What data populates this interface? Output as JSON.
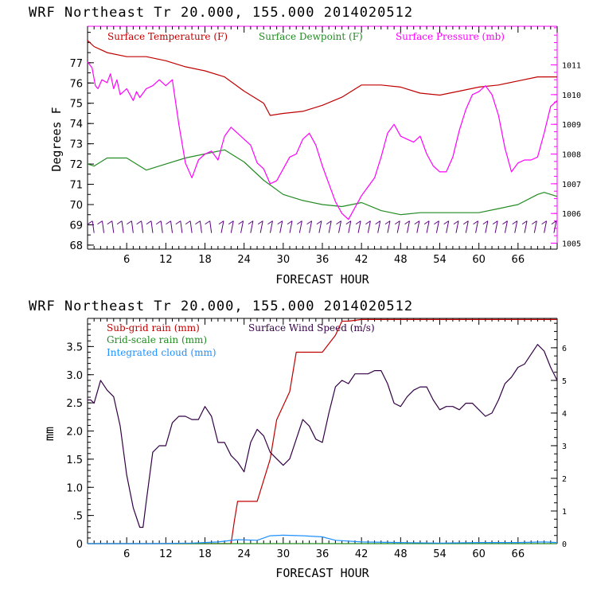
{
  "colors": {
    "temperature": "#c00000",
    "dewpoint": "#228b22",
    "pressure": "#ff00ff",
    "subgrid_rain": "#c00000",
    "gridscale_rain": "#228b22",
    "cloud": "#1e90ff",
    "wind_speed": "#330044",
    "barb": "#5a0080",
    "axis": "#000000"
  },
  "chart_data": [
    {
      "type": "line",
      "title": "WRF   Northeast Tr  20.000, 155.000  2014020512",
      "xlabel": "FORECAST HOUR",
      "ylabel": "Degrees F",
      "xlim": [
        0,
        72
      ],
      "ylim": [
        67.8,
        78.8
      ],
      "y2lim": [
        1004.8,
        1012.3
      ],
      "x_ticks": [
        "6",
        "12",
        "18",
        "24",
        "30",
        "36",
        "42",
        "48",
        "54",
        "60",
        "66"
      ],
      "y_ticks": [
        "68",
        "69",
        "70",
        "71",
        "72",
        "73",
        "74",
        "75",
        "76",
        "77"
      ],
      "y2_ticks": [
        "1005",
        "1006",
        "1007",
        "1008",
        "1009",
        "1010",
        "1011"
      ],
      "legend_position": "top",
      "wind_barbs": "wind barbs along the bottom at 69 F level, every forecast hour",
      "series": [
        {
          "name": "Surface Temperature (F)",
          "axis": "left",
          "x": [
            0,
            1,
            3,
            6,
            9,
            12,
            15,
            18,
            21,
            24,
            27,
            28,
            30,
            33,
            36,
            39,
            42,
            45,
            48,
            51,
            54,
            57,
            60,
            63,
            66,
            69,
            72
          ],
          "values": [
            78.1,
            77.8,
            77.5,
            77.3,
            77.3,
            77.1,
            76.8,
            76.6,
            76.3,
            75.6,
            75.0,
            74.4,
            74.5,
            74.6,
            74.9,
            75.3,
            75.9,
            75.9,
            75.8,
            75.5,
            75.4,
            75.6,
            75.8,
            75.9,
            76.1,
            76.3,
            76.3
          ]
        },
        {
          "name": "Surface Dewpoint (F)",
          "axis": "left",
          "x": [
            0,
            1,
            3,
            6,
            9,
            12,
            15,
            18,
            21,
            24,
            27,
            30,
            33,
            36,
            39,
            42,
            45,
            48,
            51,
            54,
            57,
            60,
            63,
            66,
            69,
            70,
            72
          ],
          "values": [
            72.0,
            71.9,
            72.3,
            72.3,
            71.7,
            72.0,
            72.3,
            72.5,
            72.7,
            72.1,
            71.2,
            70.5,
            70.2,
            70.0,
            69.9,
            70.1,
            69.7,
            69.5,
            69.6,
            69.6,
            69.6,
            69.6,
            69.8,
            70.0,
            70.5,
            70.6,
            70.4
          ]
        },
        {
          "name": "Surface Pressure (mb)",
          "axis": "right",
          "x": [
            0,
            0.7,
            1.2,
            1.6,
            2.2,
            3,
            3.5,
            4,
            4.5,
            5,
            6,
            7,
            7.5,
            8,
            9,
            10,
            11,
            12,
            13,
            14,
            15,
            16,
            17,
            18,
            19,
            20,
            21,
            22,
            23,
            24,
            25,
            26,
            27,
            28,
            29,
            30,
            31,
            32,
            33,
            34,
            35,
            36,
            37,
            38,
            39,
            40,
            41,
            42,
            43,
            44,
            45,
            46,
            47,
            48,
            49,
            50,
            51,
            52,
            53,
            54,
            55,
            56,
            57,
            58,
            59,
            60,
            61,
            62,
            63,
            64,
            65,
            66,
            67,
            68,
            69,
            70,
            71,
            72
          ],
          "values": [
            1011.1,
            1010.9,
            1010.3,
            1010.2,
            1010.5,
            1010.4,
            1010.7,
            1010.2,
            1010.5,
            1010.0,
            1010.2,
            1009.8,
            1010.1,
            1009.9,
            1010.2,
            1010.3,
            1010.5,
            1010.3,
            1010.5,
            1009.0,
            1007.7,
            1007.2,
            1007.8,
            1008.0,
            1008.1,
            1007.8,
            1008.6,
            1008.9,
            1008.7,
            1008.5,
            1008.3,
            1007.7,
            1007.5,
            1007.0,
            1007.1,
            1007.5,
            1007.9,
            1008.0,
            1008.5,
            1008.7,
            1008.3,
            1007.6,
            1007.0,
            1006.4,
            1006.0,
            1005.8,
            1006.2,
            1006.6,
            1006.9,
            1007.2,
            1007.9,
            1008.7,
            1009.0,
            1008.6,
            1008.5,
            1008.4,
            1008.6,
            1008.0,
            1007.6,
            1007.4,
            1007.4,
            1007.9,
            1008.8,
            1009.5,
            1010.0,
            1010.1,
            1010.3,
            1010.0,
            1009.3,
            1008.2,
            1007.4,
            1007.7,
            1007.8,
            1007.8,
            1007.9,
            1008.7,
            1009.6,
            1009.8
          ]
        }
      ]
    },
    {
      "type": "line",
      "title": "WRF   Northeast Tr  20.000, 155.000  2014020512",
      "xlabel": "FORECAST HOUR",
      "ylabel": "mm",
      "xlim": [
        0,
        72
      ],
      "ylim": [
        0,
        4.0
      ],
      "y2lim": [
        0,
        6.9
      ],
      "x_ticks": [
        "6",
        "12",
        "18",
        "24",
        "30",
        "36",
        "42",
        "48",
        "54",
        "60",
        "66"
      ],
      "y_ticks": [
        "0",
        ".5",
        "1.0",
        "1.5",
        "2.0",
        "2.5",
        "3.0",
        "3.5"
      ],
      "y2_ticks": [
        "0",
        "1",
        "2",
        "3",
        "4",
        "5",
        "6"
      ],
      "legend_position": "top-left",
      "series": [
        {
          "name": "Sub-grid rain (mm)",
          "axis": "left",
          "x": [
            0,
            22,
            22.5,
            23,
            26,
            28,
            29,
            31,
            32,
            36,
            38,
            39,
            40,
            42,
            72
          ],
          "values": [
            0,
            0,
            0.4,
            0.75,
            0.75,
            1.5,
            2.2,
            2.7,
            3.4,
            3.4,
            3.7,
            3.95,
            3.95,
            3.98,
            3.98
          ]
        },
        {
          "name": "Grid-scale rain (mm)",
          "axis": "left",
          "x": [
            0,
            72
          ],
          "values": [
            0,
            0
          ]
        },
        {
          "name": "Integrated cloud (mm)",
          "axis": "left",
          "x": [
            0,
            10,
            16,
            20,
            23,
            26,
            28,
            30,
            33,
            36,
            38,
            42,
            48,
            54,
            60,
            66,
            70,
            72
          ],
          "values": [
            0,
            0,
            0.01,
            0.03,
            0.07,
            0.06,
            0.14,
            0.15,
            0.14,
            0.12,
            0.06,
            0.03,
            0.02,
            0.01,
            0.02,
            0.02,
            0.03,
            0.02
          ]
        },
        {
          "name": "Surface Wind Speed (m/s)",
          "axis": "right",
          "x": [
            0,
            0.5,
            1,
            2,
            3,
            4,
            5,
            6,
            7,
            8,
            8.5,
            9,
            10,
            11,
            12,
            13,
            14,
            15,
            16,
            17,
            18,
            19,
            20,
            21,
            22,
            23,
            24,
            25,
            26,
            27,
            28,
            29,
            30,
            31,
            32,
            33,
            34,
            35,
            36,
            37,
            38,
            39,
            40,
            41,
            42,
            43,
            44,
            45,
            46,
            47,
            48,
            49,
            50,
            51,
            52,
            53,
            54,
            55,
            56,
            57,
            58,
            59,
            60,
            61,
            62,
            63,
            64,
            65,
            66,
            67,
            68,
            69,
            70,
            71,
            72
          ],
          "values": [
            4.4,
            4.4,
            4.3,
            5.0,
            4.7,
            4.5,
            3.6,
            2.1,
            1.1,
            0.5,
            0.5,
            1.3,
            2.8,
            3.0,
            3.0,
            3.7,
            3.9,
            3.9,
            3.8,
            3.8,
            4.2,
            3.9,
            3.1,
            3.1,
            2.7,
            2.5,
            2.2,
            3.1,
            3.5,
            3.3,
            2.8,
            2.6,
            2.4,
            2.6,
            3.2,
            3.8,
            3.6,
            3.2,
            3.1,
            4.0,
            4.8,
            5.0,
            4.9,
            5.2,
            5.2,
            5.2,
            5.3,
            5.3,
            4.9,
            4.3,
            4.2,
            4.5,
            4.7,
            4.8,
            4.8,
            4.4,
            4.1,
            4.2,
            4.2,
            4.1,
            4.3,
            4.3,
            4.1,
            3.9,
            4.0,
            4.4,
            4.9,
            5.1,
            5.4,
            5.5,
            5.8,
            6.1,
            5.9,
            5.4,
            5.0
          ]
        }
      ]
    }
  ]
}
